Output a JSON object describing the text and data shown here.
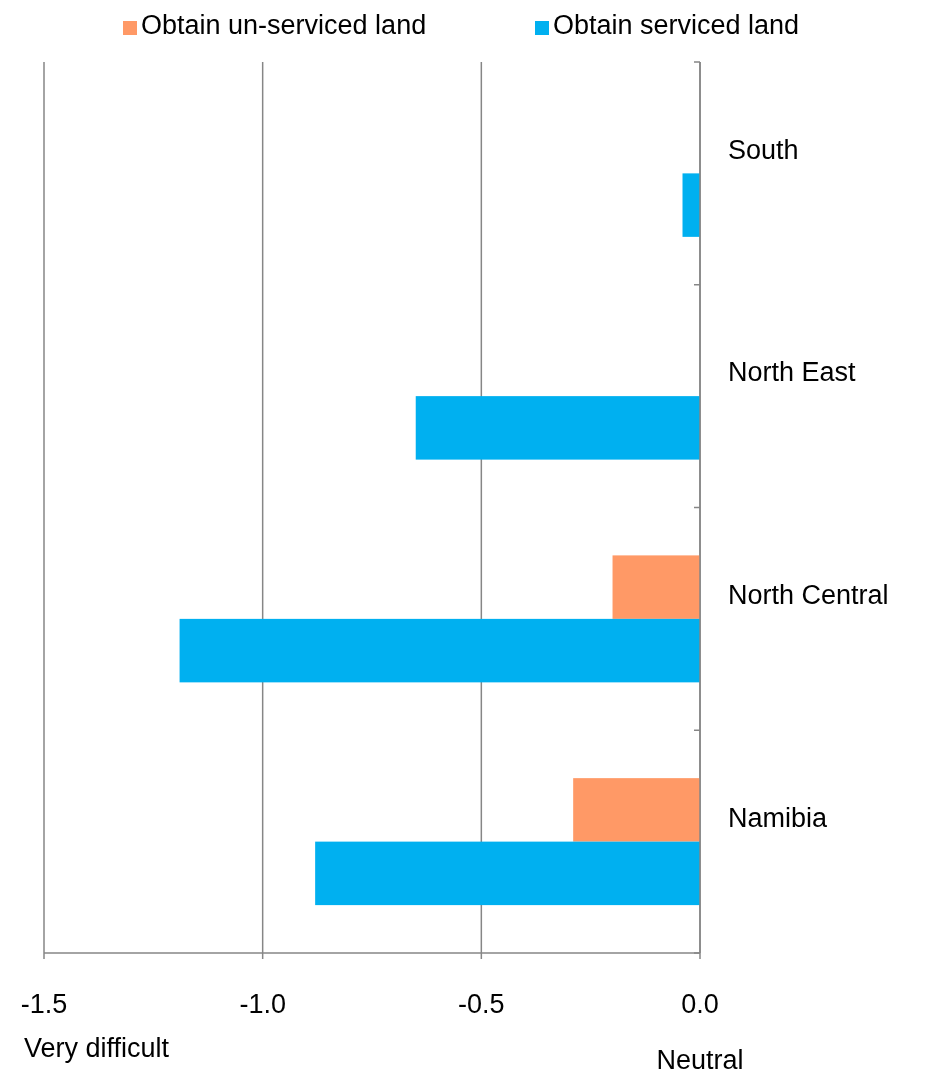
{
  "chart_data": {
    "type": "bar",
    "orientation": "horizontal",
    "categories": [
      "South",
      "North East",
      "North Central",
      "Namibia"
    ],
    "series": [
      {
        "name": "Obtain un-serviced land",
        "color": "#ff9966",
        "values": [
          null,
          null,
          -0.2,
          -0.29
        ]
      },
      {
        "name": "Obtain serviced land",
        "color": "#00b0f0",
        "values": [
          -0.04,
          -0.65,
          -1.19,
          -0.88
        ]
      }
    ],
    "xlim": [
      -1.5,
      0
    ],
    "xticks": [
      {
        "value": -1.5,
        "label": "-1.5"
      },
      {
        "value": -1,
        "label": "-1.0"
      },
      {
        "value": -0.5,
        "label": "-0.5"
      },
      {
        "value": 0,
        "label": "0.0"
      }
    ],
    "grid": "x",
    "legend": "top",
    "annotations": [
      "Very difficult",
      "Neutral"
    ]
  }
}
